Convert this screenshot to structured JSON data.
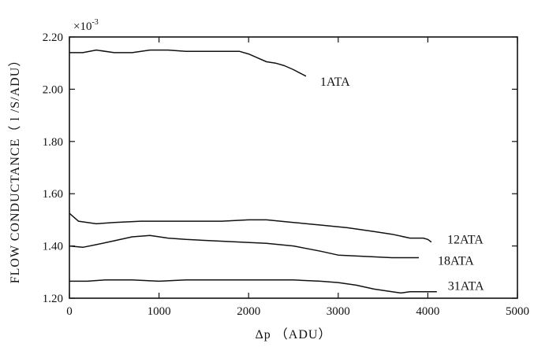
{
  "chart_data": {
    "type": "line",
    "xlabel": "Δp （ADU）",
    "ylabel": "FLOW CONDUCTANCE（ l /S/ADU）",
    "y_multiplier": {
      "base": "×10",
      "exponent": "-3"
    },
    "xlim": [
      0,
      5000
    ],
    "ylim": [
      1.2,
      2.2
    ],
    "x_ticks": [
      0,
      1000,
      2000,
      3000,
      4000,
      5000
    ],
    "x_tick_labels": [
      "0",
      "1000",
      "2000",
      "3000",
      "4000",
      "5000"
    ],
    "y_ticks": [
      1.2,
      1.4,
      1.6,
      1.8,
      2.0,
      2.2
    ],
    "y_tick_labels": [
      "1.20",
      "1.40",
      "1.60",
      "1.80",
      "2.00",
      "2.20"
    ],
    "grid": false,
    "series": [
      {
        "name": "1ATA",
        "x": [
          0,
          150,
          300,
          500,
          700,
          900,
          1100,
          1300,
          1500,
          1700,
          1900,
          2000,
          2100,
          2200,
          2300,
          2400,
          2500,
          2640
        ],
        "y": [
          2.14,
          2.14,
          2.15,
          2.14,
          2.14,
          2.15,
          2.15,
          2.145,
          2.145,
          2.145,
          2.145,
          2.135,
          2.12,
          2.105,
          2.1,
          2.09,
          2.075,
          2.05
        ]
      },
      {
        "name": "12ATA",
        "x": [
          0,
          100,
          300,
          500,
          800,
          1100,
          1400,
          1700,
          2000,
          2200,
          2500,
          2800,
          3100,
          3400,
          3600,
          3800,
          3950,
          4000,
          4040
        ],
        "y": [
          1.525,
          1.495,
          1.485,
          1.49,
          1.495,
          1.495,
          1.495,
          1.495,
          1.5,
          1.5,
          1.49,
          1.48,
          1.47,
          1.455,
          1.445,
          1.43,
          1.43,
          1.425,
          1.415
        ]
      },
      {
        "name": "18ATA",
        "x": [
          0,
          150,
          300,
          500,
          700,
          900,
          1100,
          1300,
          1600,
          1900,
          2200,
          2500,
          2800,
          3000,
          3300,
          3600,
          3900
        ],
        "y": [
          1.4,
          1.395,
          1.405,
          1.42,
          1.435,
          1.44,
          1.43,
          1.425,
          1.42,
          1.415,
          1.41,
          1.4,
          1.38,
          1.365,
          1.36,
          1.355,
          1.355
        ]
      },
      {
        "name": "31ATA",
        "x": [
          0,
          200,
          400,
          700,
          1000,
          1300,
          1600,
          1900,
          2200,
          2500,
          2800,
          3000,
          3200,
          3400,
          3600,
          3700,
          3800,
          3900,
          4000,
          4100
        ],
        "y": [
          1.265,
          1.265,
          1.27,
          1.27,
          1.265,
          1.27,
          1.27,
          1.27,
          1.27,
          1.27,
          1.265,
          1.26,
          1.25,
          1.235,
          1.225,
          1.22,
          1.225,
          1.225,
          1.225,
          1.225
        ]
      }
    ]
  }
}
